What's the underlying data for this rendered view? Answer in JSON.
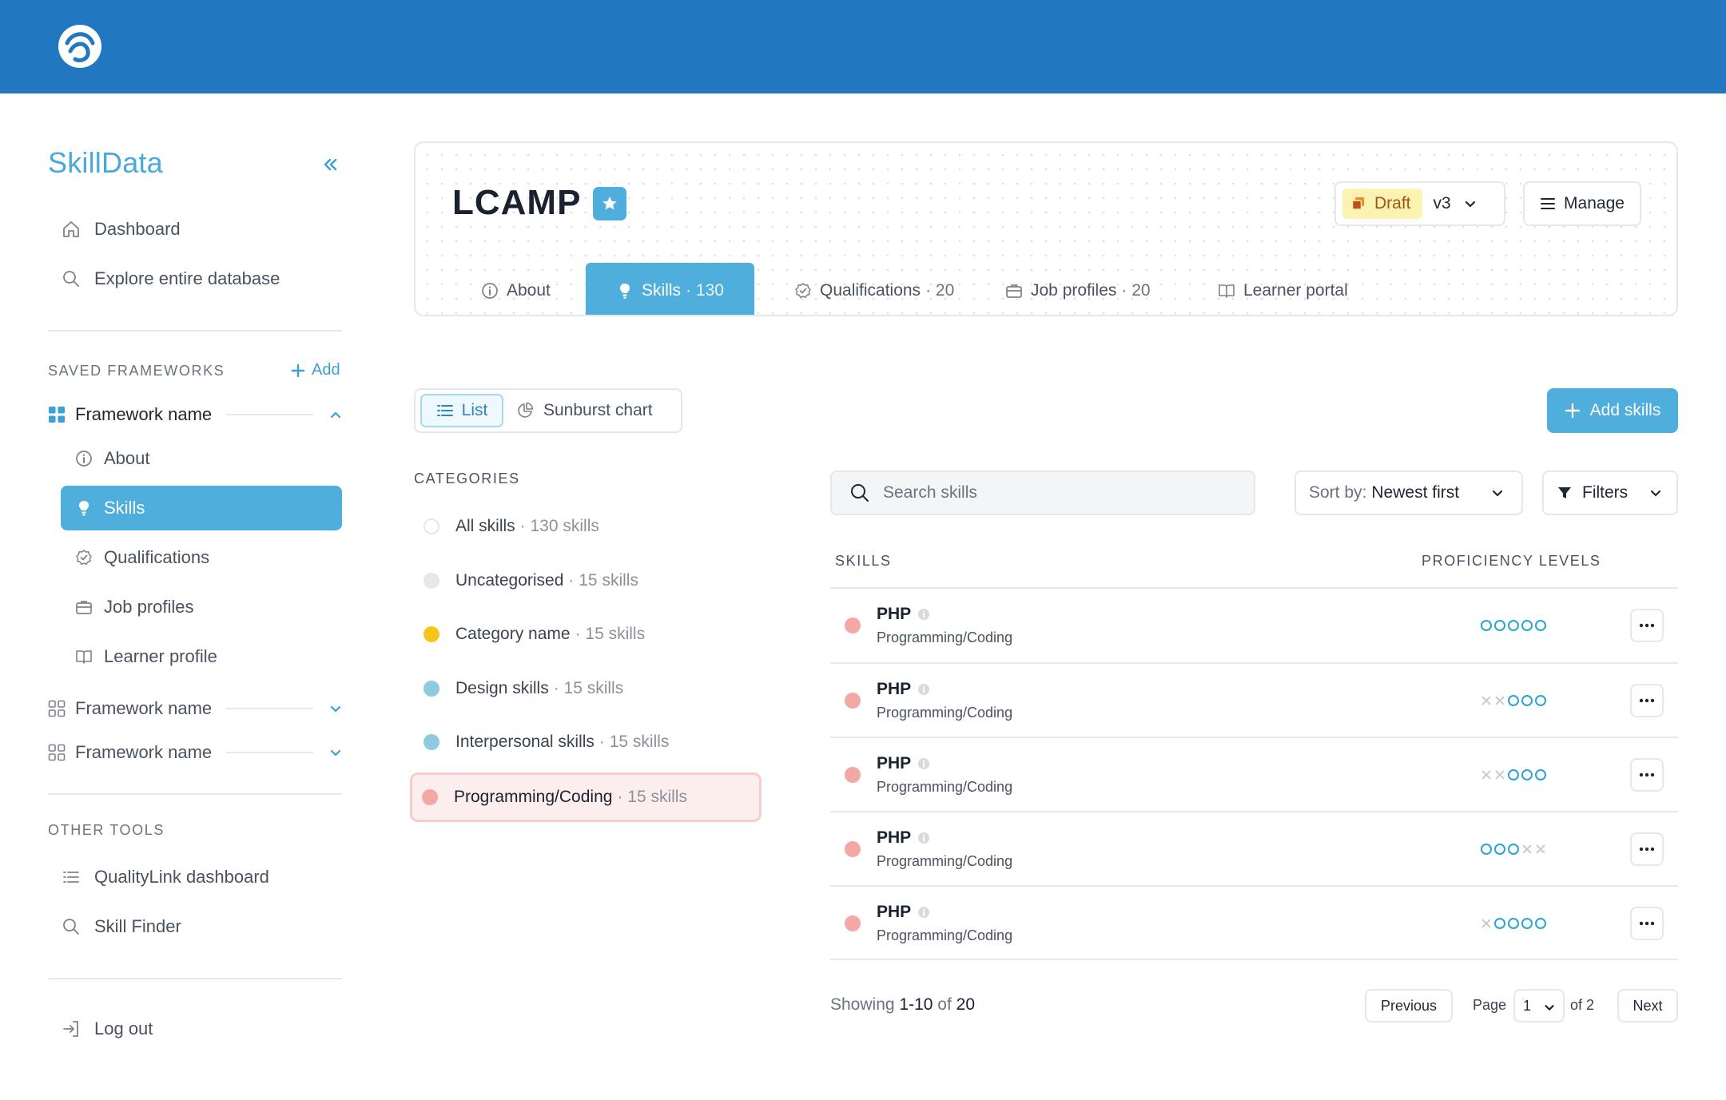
{
  "app": {
    "brand": "SkillData",
    "colors": {
      "topbar": "#2178c0",
      "accent": "#4faedb",
      "skill_dot": "#f4a8a6"
    }
  },
  "sidebar": {
    "main_nav": [
      {
        "label": "Dashboard",
        "icon": "home-icon"
      },
      {
        "label": "Explore entire database",
        "icon": "search-icon"
      }
    ],
    "saved_frameworks_label": "SAVED FRAMEWORKS",
    "add_label": "Add",
    "frameworks": [
      {
        "label": "Framework name",
        "expanded": true
      },
      {
        "label": "Framework name",
        "expanded": false
      },
      {
        "label": "Framework name",
        "expanded": false
      }
    ],
    "framework_sub_items": [
      {
        "label": "About",
        "icon": "info-icon"
      },
      {
        "label": "Skills",
        "icon": "lightbulb-icon",
        "active": true
      },
      {
        "label": "Qualifications",
        "icon": "badge-check-icon"
      },
      {
        "label": "Job profiles",
        "icon": "briefcase-icon"
      },
      {
        "label": "Learner profile",
        "icon": "book-icon"
      }
    ],
    "other_tools_label": "OTHER TOOLS",
    "other_tools": [
      {
        "label": "QualityLink dashboard",
        "icon": "list-icon"
      },
      {
        "label": "Skill Finder",
        "icon": "search-icon"
      }
    ],
    "logout_label": "Log out"
  },
  "header": {
    "title": "LCAMP",
    "status": "Draft",
    "version": "v3",
    "manage_label": "Manage",
    "tabs": [
      {
        "label": "About",
        "count": "",
        "icon": "info-icon"
      },
      {
        "label": "Skills",
        "count": "· 130",
        "icon": "lightbulb-icon",
        "active": true
      },
      {
        "label": "Qualifications",
        "count": "· 20",
        "icon": "badge-check-icon"
      },
      {
        "label": "Job profiles",
        "count": "· 20",
        "icon": "briefcase-icon"
      },
      {
        "label": "Learner portal",
        "count": "",
        "icon": "book-icon"
      }
    ]
  },
  "view_toggle": {
    "list_label": "List",
    "sunburst_label": "Sunburst chart",
    "selected": "List"
  },
  "add_skills_label": "Add skills",
  "categories": {
    "label": "CATEGORIES",
    "items": [
      {
        "name": "All skills",
        "meta": "· 130 skills",
        "color": "#ffffff"
      },
      {
        "name": "Uncategorised",
        "meta": "· 15 skills",
        "color": "#e5e7eb"
      },
      {
        "name": "Category name",
        "meta": "· 15 skills",
        "color": "#f6c51a"
      },
      {
        "name": "Design skills",
        "meta": "· 15 skills",
        "color": "#8fcbdf"
      },
      {
        "name": "Interpersonal skills",
        "meta": "· 15 skills",
        "color": "#8fcbdf"
      },
      {
        "name": "Programming/Coding",
        "meta": "· 15 skills",
        "color": "#f4a8a6",
        "active": true
      }
    ]
  },
  "skills": {
    "search_placeholder": "Search skills",
    "sort_label": "Sort by:",
    "sort_value": "Newest first",
    "filters_label": "Filters",
    "col_skills": "SKILLS",
    "col_proficiency": "PROFICIENCY LEVELS",
    "rows": [
      {
        "name": "PHP",
        "category": "Programming/Coding",
        "levels": [
          "o",
          "o",
          "o",
          "o",
          "o"
        ]
      },
      {
        "name": "PHP",
        "category": "Programming/Coding",
        "levels": [
          "x",
          "x",
          "o",
          "o",
          "o"
        ]
      },
      {
        "name": "PHP",
        "category": "Programming/Coding",
        "levels": [
          "x",
          "x",
          "o",
          "o",
          "o"
        ]
      },
      {
        "name": "PHP",
        "category": "Programming/Coding",
        "levels": [
          "o",
          "o",
          "o",
          "x",
          "x"
        ]
      },
      {
        "name": "PHP",
        "category": "Programming/Coding",
        "levels": [
          "x",
          "o",
          "o",
          "o",
          "o"
        ]
      }
    ]
  },
  "pagination": {
    "showing_prefix": "Showing",
    "range": "1-10",
    "of_word": "of",
    "total": "20",
    "previous_label": "Previous",
    "page_label": "Page",
    "current_page": "1",
    "of_pages": "of 2",
    "next_label": "Next"
  }
}
